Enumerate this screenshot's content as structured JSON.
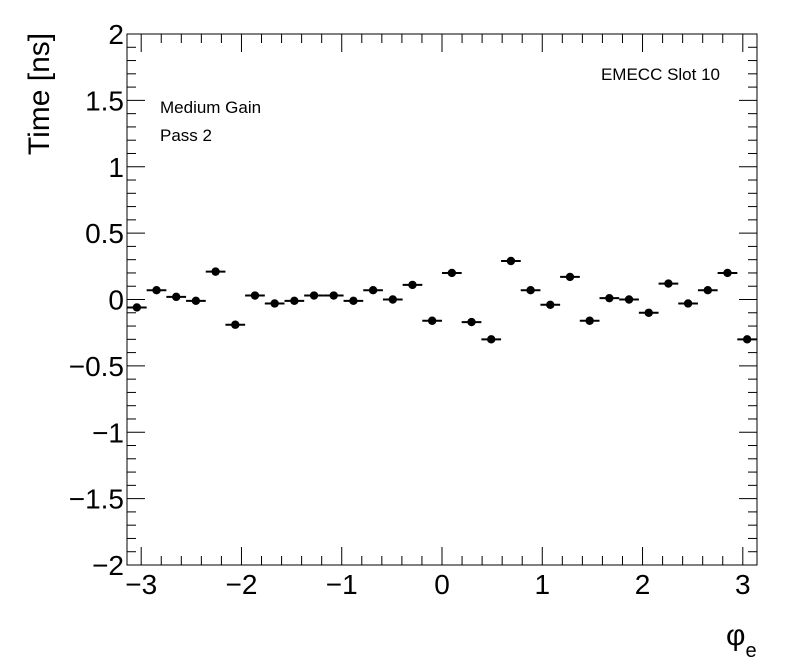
{
  "chart_data": {
    "type": "scatter",
    "ylabel": "Time [ns]",
    "xlabel_symbol": "φ",
    "xlabel_sub": "e",
    "xlim": [
      -3.14159,
      3.14159
    ],
    "ylim": [
      -2,
      2
    ],
    "xticks": [
      -3,
      -2,
      -1,
      0,
      1,
      2,
      3
    ],
    "xtick_labels": [
      "−3",
      "−2",
      "−1",
      "0",
      "1",
      "2",
      "3"
    ],
    "yticks": [
      -2,
      -1.5,
      -1,
      -0.5,
      0,
      0.5,
      1,
      1.5,
      2
    ],
    "ytick_labels": [
      "−2",
      "−1.5",
      "−1",
      "−0.5",
      "0",
      "0.5",
      "1",
      "1.5",
      "2"
    ],
    "grid": false,
    "annotations": {
      "top_right": "EMECC Slot 10",
      "top_left_line1": "Medium Gain",
      "top_left_line2": "Pass 2"
    },
    "bin_half_width": 0.0982,
    "x": [
      -3.0434,
      -2.8471,
      -2.6507,
      -2.4544,
      -2.258,
      -2.0617,
      -1.8653,
      -1.669,
      -1.4726,
      -1.2763,
      -1.0799,
      -0.8836,
      -0.6872,
      -0.4909,
      -0.2945,
      -0.0982,
      0.0982,
      0.2945,
      0.4909,
      0.6872,
      0.8836,
      1.0799,
      1.2763,
      1.4726,
      1.669,
      1.8653,
      2.0617,
      2.258,
      2.4544,
      2.6507,
      2.8471,
      3.0434
    ],
    "y": [
      -0.06,
      0.07,
      0.02,
      -0.01,
      0.21,
      -0.19,
      0.03,
      -0.03,
      -0.01,
      0.03,
      0.03,
      -0.01,
      0.07,
      0.0,
      0.11,
      -0.16,
      0.2,
      -0.17,
      -0.3,
      0.29,
      0.07,
      -0.04,
      0.17,
      -0.16,
      0.01,
      0.0,
      -0.1,
      0.12,
      -0.03,
      0.07,
      0.2,
      -0.3
    ]
  },
  "style": {
    "marker_color": "#000000",
    "axis_color": "#000000"
  }
}
